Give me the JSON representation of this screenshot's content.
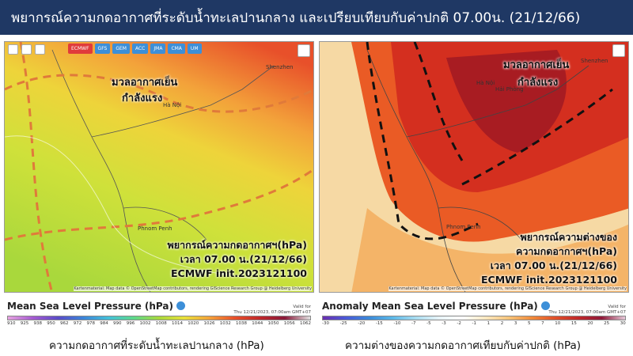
{
  "header": {
    "title": "พยากรณ์ความกดอากาศที่ระดับน้ำทะเลปานกลาง และเปรียบเทียบกับค่าปกติ 07.00น. (21/12/66)"
  },
  "panels": [
    {
      "model_buttons": [
        "ECMWF",
        "GFS",
        "GEM",
        "ACC",
        "JMA",
        "CMA",
        "UM"
      ],
      "annotations": [
        "มวลอากาศเย็น",
        "กำลังแรง"
      ],
      "info_box": [
        "พยากรณ์ความกดอากาศฯ(hPa)",
        "เวลา 07.00 น.(21/12/66)",
        "ECMWF init.2023121100"
      ],
      "places": [
        "Shenzhen",
        "Hà Nội",
        "Phnom Penh"
      ],
      "attribution": "Kartenmaterial: Map data © OpenStreetMap contributors, rendering GIScience Research Group @ Heidelberg University",
      "legend": {
        "title": "Mean Sea Level Pressure (hPa)",
        "valid_for": "Valid for",
        "valid_time": "Thu 12/21/2023, 07:00am GMT+07",
        "ticks": [
          910,
          925,
          938,
          950,
          962,
          972,
          978,
          984,
          990,
          996,
          1002,
          1008,
          1014,
          1020,
          1026,
          1032,
          1038,
          1044,
          1050,
          1056,
          1062
        ]
      },
      "caption": "ความกดอากาศที่ระดับน้ำทะเลปานกลาง (hPa)"
    },
    {
      "annotations": [
        "มวลอากาศเย็น",
        "กำลังแรง"
      ],
      "info_box": [
        "พยากรณ์ความต่างของ",
        "ความกดอากาศฯ(hPa)",
        "เวลา 07.00 น.(21/12/66)",
        "ECMWF init.2023121100"
      ],
      "places": [
        "Shenzhen",
        "Hà Nội",
        "Hải Phòng",
        "Phnom Penh"
      ],
      "attribution": "Kartenmaterial: Map data © OpenStreetMap contributors, rendering GIScience Research Group @ Heidelberg University",
      "legend": {
        "title": "Anomaly Mean Sea Level Pressure (hPa)",
        "valid_for": "Valid for",
        "valid_time": "Thu 12/21/2023, 07:00am GMT+07",
        "ticks": [
          -30,
          -25,
          -20,
          -15,
          -10,
          -7,
          -5,
          -3,
          -2,
          -1,
          1,
          2,
          3,
          5,
          7,
          10,
          15,
          20,
          25,
          30
        ]
      },
      "caption": "ความต่างของความกดอากาศเทียบกับค่าปกติ (hPa)"
    }
  ]
}
